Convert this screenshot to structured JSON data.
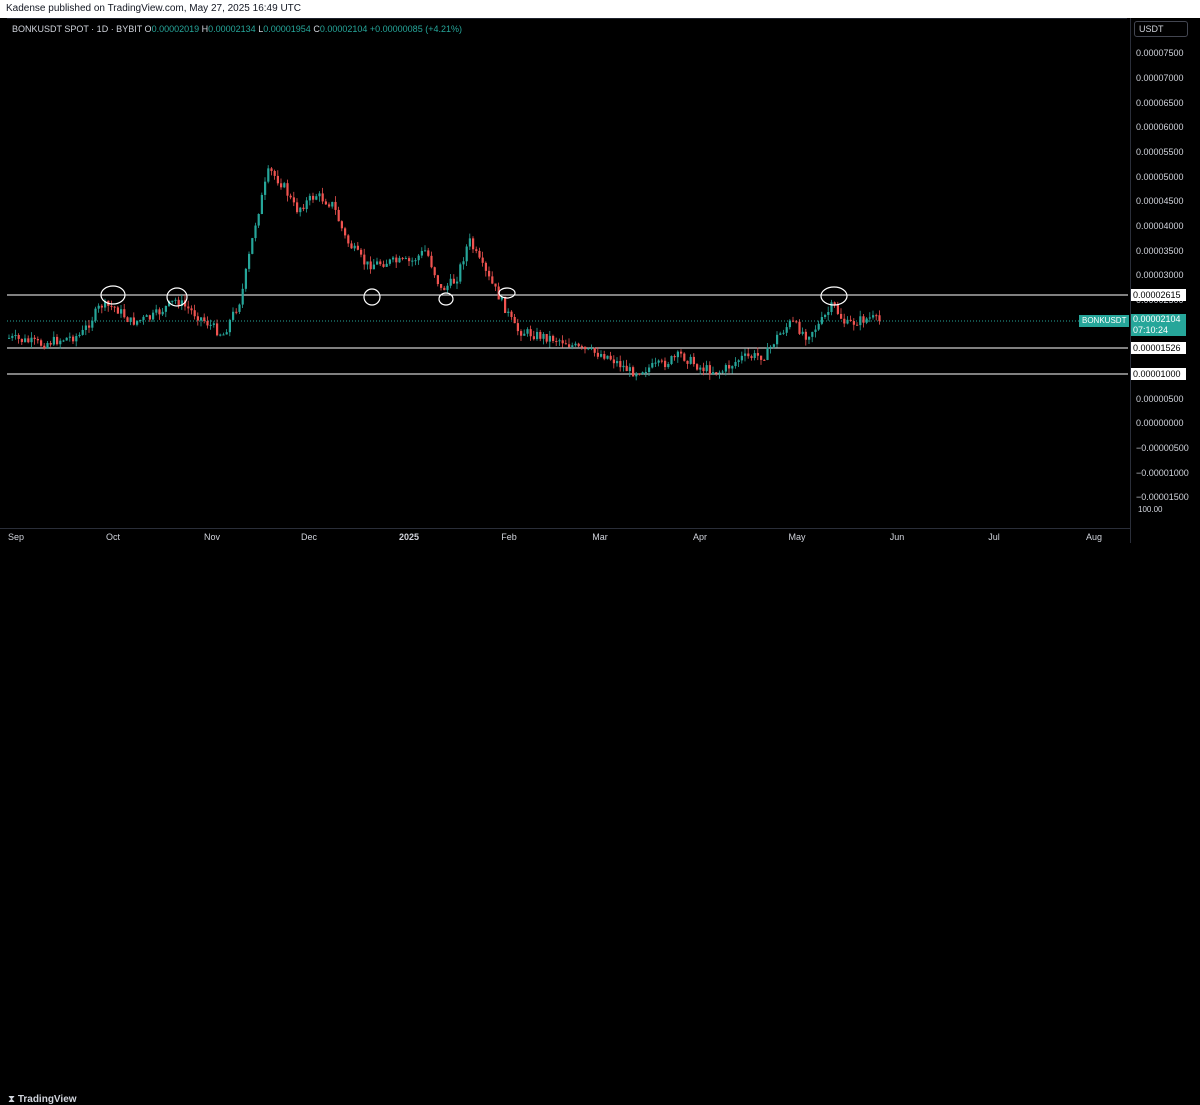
{
  "header": {
    "published": "Kadense published on TradingView.com, May 27, 2025 16:49 UTC"
  },
  "legend": {
    "symbol": "BONKUSDT SPOT · 1D · BYBIT",
    "o_label": "O",
    "o_value": "0.00002019",
    "h_label": "H",
    "h_value": "0.00002134",
    "l_label": "L",
    "l_value": "0.00001954",
    "c_label": "C",
    "c_value": "0.00002104",
    "change": "+0.00000085 (+4.21%)"
  },
  "price_scale": {
    "currency": "USDT",
    "labels": [
      "0.00007500",
      "0.00007000",
      "0.00006500",
      "0.00006000",
      "0.00005500",
      "0.00005000",
      "0.00004500",
      "0.00004000",
      "0.00003500",
      "0.00003000",
      "0.00002500",
      "0.00000500",
      "0.00000000",
      "−0.00000500",
      "−0.00001000",
      "−0.00001500"
    ],
    "hundred_label": "100.00"
  },
  "horizontal_levels": [
    "0.00002615",
    "0.00001526",
    "0.00001000"
  ],
  "current": {
    "symbol": "BONKUSDT",
    "price": "0.00002104",
    "countdown": "07:10:24"
  },
  "time_axis": [
    "Sep",
    "Oct",
    "Nov",
    "Dec",
    "2025",
    "Feb",
    "Mar",
    "Apr",
    "May",
    "Jun",
    "Jul",
    "Aug"
  ],
  "footer": {
    "brand": "TradingView"
  },
  "colors": {
    "up": "#26a69a",
    "down": "#ef5350",
    "background": "#000000",
    "level": "#ffffff"
  },
  "chart_data": {
    "type": "candlestick",
    "ylim": [
      -1.7e-05,
      7.8e-05
    ],
    "series": [
      {
        "x": "Sep",
        "close": 1.8e-05
      },
      {
        "x": "Oct",
        "close": 2.5e-05
      },
      {
        "x": "Oct-mid",
        "close": 2.5e-05
      },
      {
        "x": "Nov",
        "close": 2e-05
      },
      {
        "x": "Nov-mid",
        "close": 5.3e-05
      },
      {
        "x": "Dec",
        "close": 4.5e-05
      },
      {
        "x": "Dec-mid",
        "close": 3e-05
      },
      {
        "x": "2025",
        "close": 3.2e-05
      },
      {
        "x": "Jan-mid",
        "close": 3e-05
      },
      {
        "x": "Feb",
        "close": 1.9e-05
      },
      {
        "x": "Mar",
        "close": 1.3e-05
      },
      {
        "x": "Apr",
        "close": 1.1e-05
      },
      {
        "x": "May",
        "close": 2e-05
      },
      {
        "x": "May-mid",
        "close": 2.4e-05
      },
      {
        "x": "May-end",
        "close": 2.1e-05
      }
    ]
  }
}
